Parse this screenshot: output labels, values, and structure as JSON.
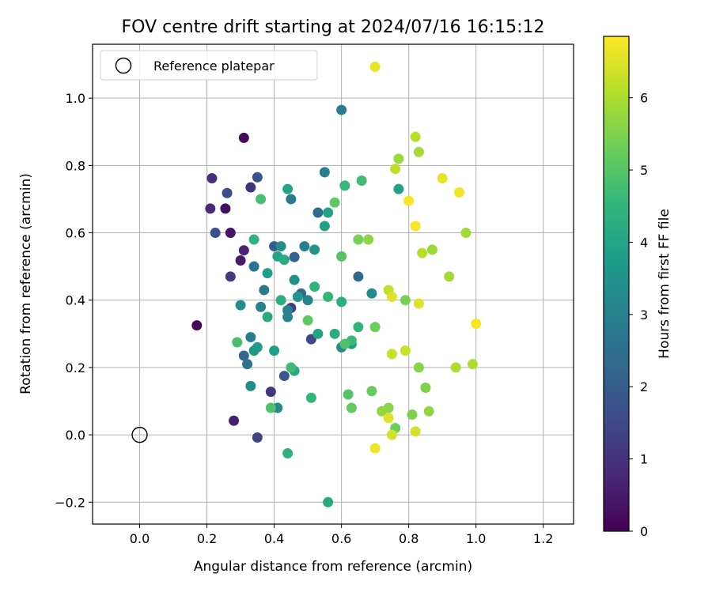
{
  "chart_data": {
    "type": "scatter",
    "title": "FOV centre drift starting at 2024/07/16 16:15:12",
    "xlabel": "Angular distance from reference (arcmin)",
    "ylabel": "Rotation from reference (arcmin)",
    "xlim": [
      -0.14,
      1.29
    ],
    "ylim": [
      -0.265,
      1.16
    ],
    "xticks": [
      0.0,
      0.2,
      0.4,
      0.6,
      0.8,
      1.0,
      1.2
    ],
    "xtick_labels": [
      "0.0",
      "0.2",
      "0.4",
      "0.6",
      "0.8",
      "1.0",
      "1.2"
    ],
    "yticks": [
      -0.2,
      0.0,
      0.2,
      0.4,
      0.6,
      0.8,
      1.0
    ],
    "ytick_labels": [
      "−0.2",
      "0.0",
      "0.2",
      "0.4",
      "0.6",
      "0.8",
      "1.0"
    ],
    "grid": true,
    "legend": {
      "placement": "top-left",
      "entries": [
        "Reference platepar"
      ]
    },
    "reference_point": {
      "label": "Reference platepar",
      "x": 0.0,
      "y": 0.0,
      "marker": "hollow-circle"
    },
    "colorbar": {
      "label": "Hours from first FF file",
      "colormap": "viridis",
      "range": [
        0,
        6.85
      ],
      "ticks": [
        0,
        1,
        2,
        3,
        4,
        5,
        6
      ],
      "tick_labels": [
        "0",
        "1",
        "2",
        "3",
        "4",
        "5",
        "6"
      ]
    },
    "colormap_stops": [
      "#440154",
      "#482878",
      "#3e4989",
      "#31688e",
      "#26828e",
      "#1f9e89",
      "#35b779",
      "#6ece58",
      "#b5de2b",
      "#fde725"
    ],
    "points": [
      [
        0.17,
        0.325,
        0.1
      ],
      [
        0.31,
        0.882,
        0.2
      ],
      [
        0.255,
        0.672,
        0.3
      ],
      [
        0.27,
        0.6,
        0.4
      ],
      [
        0.3,
        0.518,
        0.5
      ],
      [
        0.28,
        0.042,
        0.6
      ],
      [
        0.31,
        0.548,
        0.7
      ],
      [
        0.21,
        0.672,
        0.8
      ],
      [
        0.215,
        0.762,
        0.9
      ],
      [
        0.33,
        0.735,
        1.0
      ],
      [
        0.39,
        0.128,
        1.1
      ],
      [
        0.27,
        0.47,
        1.2
      ],
      [
        0.45,
        0.377,
        1.3
      ],
      [
        0.35,
        -0.008,
        1.4
      ],
      [
        0.51,
        0.284,
        1.5
      ],
      [
        0.26,
        0.718,
        1.6
      ],
      [
        0.225,
        0.6,
        1.7
      ],
      [
        0.35,
        0.765,
        1.8
      ],
      [
        0.43,
        0.175,
        1.9
      ],
      [
        0.4,
        0.56,
        2.0
      ],
      [
        0.46,
        0.528,
        2.1
      ],
      [
        0.31,
        0.235,
        2.2
      ],
      [
        0.65,
        0.47,
        2.3
      ],
      [
        0.53,
        0.66,
        2.4
      ],
      [
        0.48,
        0.42,
        2.5
      ],
      [
        0.32,
        0.21,
        2.6
      ],
      [
        0.34,
        0.5,
        2.7
      ],
      [
        0.37,
        0.43,
        2.8
      ],
      [
        0.33,
        0.29,
        2.9
      ],
      [
        0.6,
        0.965,
        2.9
      ],
      [
        0.55,
        0.78,
        3.0
      ],
      [
        0.36,
        0.38,
        3.0
      ],
      [
        0.44,
        0.35,
        3.1
      ],
      [
        0.5,
        0.4,
        3.1
      ],
      [
        0.6,
        0.26,
        3.2
      ],
      [
        0.41,
        0.08,
        3.2
      ],
      [
        0.69,
        0.42,
        3.3
      ],
      [
        0.42,
        0.56,
        3.3
      ],
      [
        0.33,
        0.145,
        3.4
      ],
      [
        0.3,
        0.385,
        3.4
      ],
      [
        0.46,
        0.46,
        3.5
      ],
      [
        0.52,
        0.55,
        3.5
      ],
      [
        0.47,
        0.41,
        3.6
      ],
      [
        0.34,
        0.25,
        3.6
      ],
      [
        0.63,
        0.27,
        3.7
      ],
      [
        0.35,
        0.26,
        3.7
      ],
      [
        0.38,
        0.48,
        3.8
      ],
      [
        0.4,
        0.25,
        3.8
      ],
      [
        0.56,
        0.66,
        3.9
      ],
      [
        0.55,
        0.62,
        3.9
      ],
      [
        0.44,
        0.73,
        4.0
      ],
      [
        0.41,
        0.53,
        4.0
      ],
      [
        0.38,
        0.35,
        4.1
      ],
      [
        0.46,
        0.19,
        4.1
      ],
      [
        0.58,
        0.3,
        4.2
      ],
      [
        0.43,
        0.52,
        4.2
      ],
      [
        0.42,
        0.4,
        4.3
      ],
      [
        0.6,
        0.395,
        4.3
      ],
      [
        0.52,
        0.44,
        4.4
      ],
      [
        0.34,
        0.58,
        4.4
      ],
      [
        0.51,
        0.11,
        4.5
      ],
      [
        0.56,
        0.41,
        4.5
      ],
      [
        0.61,
        0.74,
        4.6
      ],
      [
        0.63,
        0.28,
        4.6
      ],
      [
        0.66,
        0.755,
        4.7
      ],
      [
        0.45,
        0.2,
        4.7
      ],
      [
        0.36,
        0.7,
        4.8
      ],
      [
        0.29,
        0.275,
        4.8
      ],
      [
        0.61,
        0.27,
        4.9
      ],
      [
        0.39,
        0.08,
        4.9
      ],
      [
        0.62,
        0.12,
        5.0
      ],
      [
        0.6,
        0.53,
        5.0
      ],
      [
        0.58,
        0.69,
        5.1
      ],
      [
        0.5,
        0.34,
        5.1
      ],
      [
        0.69,
        0.13,
        5.2
      ],
      [
        0.63,
        0.08,
        5.2
      ],
      [
        0.76,
        0.02,
        5.3
      ],
      [
        0.7,
        0.32,
        5.3
      ],
      [
        0.65,
        0.58,
        5.4
      ],
      [
        0.79,
        0.4,
        5.4
      ],
      [
        0.81,
        0.06,
        5.5
      ],
      [
        0.85,
        0.14,
        5.5
      ],
      [
        0.83,
        0.2,
        5.6
      ],
      [
        0.74,
        0.08,
        5.6
      ],
      [
        0.72,
        0.07,
        5.7
      ],
      [
        0.86,
        0.07,
        5.7
      ],
      [
        0.77,
        0.82,
        5.8
      ],
      [
        0.87,
        0.55,
        5.8
      ],
      [
        0.92,
        0.47,
        5.9
      ],
      [
        0.97,
        0.6,
        5.9
      ],
      [
        0.99,
        0.21,
        6.0
      ],
      [
        0.94,
        0.2,
        6.0
      ],
      [
        0.84,
        0.54,
        6.1
      ],
      [
        0.82,
        0.885,
        6.1
      ],
      [
        0.74,
        0.43,
        6.2
      ],
      [
        0.76,
        0.79,
        6.2
      ],
      [
        0.75,
        0.24,
        6.3
      ],
      [
        0.79,
        0.25,
        6.3
      ],
      [
        0.75,
        0.0,
        6.4
      ],
      [
        0.82,
        0.01,
        6.4
      ],
      [
        0.83,
        0.39,
        6.5
      ],
      [
        0.75,
        0.41,
        6.5
      ],
      [
        0.7,
        1.093,
        6.6
      ],
      [
        0.9,
        0.762,
        6.6
      ],
      [
        0.95,
        0.72,
        6.7
      ],
      [
        0.7,
        -0.04,
        6.7
      ],
      [
        0.82,
        0.62,
        6.8
      ],
      [
        0.8,
        0.695,
        6.8
      ],
      [
        0.74,
        0.05,
        6.5
      ],
      [
        1.0,
        0.33,
        6.8
      ],
      [
        0.44,
        -0.055,
        4.4
      ],
      [
        0.56,
        -0.2,
        4.1
      ],
      [
        0.44,
        0.37,
        3.0
      ],
      [
        0.49,
        0.56,
        3.0
      ],
      [
        0.45,
        0.7,
        2.8
      ],
      [
        0.77,
        0.73,
        3.9
      ],
      [
        0.83,
        0.84,
        5.9
      ],
      [
        0.53,
        0.3,
        4.0
      ],
      [
        0.65,
        0.32,
        4.5
      ],
      [
        0.68,
        0.58,
        5.7
      ]
    ]
  }
}
